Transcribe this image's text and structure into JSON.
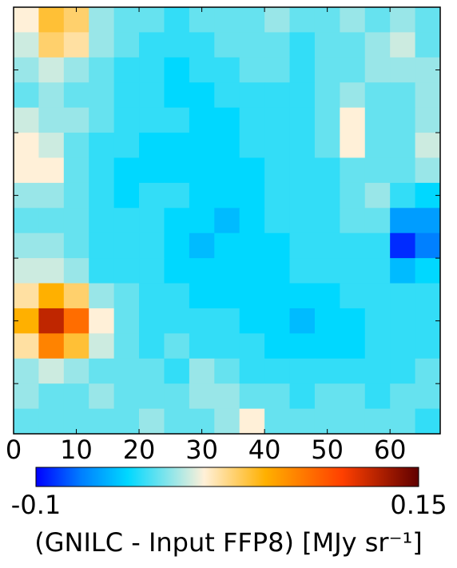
{
  "chart_data": {
    "type": "heatmap",
    "xlim": [
      0,
      68
    ],
    "ylim": [
      0,
      68
    ],
    "xticks": [
      0,
      10,
      20,
      30,
      40,
      50,
      60
    ],
    "yticks": [
      10,
      20,
      30,
      40,
      50,
      60
    ],
    "values": [
      [
        0.01,
        0.04,
        0.03,
        -0.01,
        -0.02,
        -0.02,
        -0.03,
        -0.02,
        -0.02,
        -0.02,
        -0.01,
        -0.02,
        -0.02,
        -0.01,
        -0.02,
        -0.01,
        -0.02
      ],
      [
        0.0,
        0.03,
        0.02,
        -0.01,
        -0.02,
        -0.03,
        -0.03,
        -0.03,
        -0.02,
        -0.02,
        -0.02,
        -0.03,
        -0.02,
        -0.02,
        -0.01,
        0.0,
        -0.02
      ],
      [
        -0.01,
        0.0,
        -0.01,
        -0.02,
        -0.03,
        -0.03,
        -0.04,
        -0.03,
        -0.03,
        -0.02,
        -0.02,
        -0.03,
        -0.02,
        -0.02,
        -0.01,
        -0.01,
        -0.01
      ],
      [
        -0.02,
        -0.01,
        -0.02,
        -0.02,
        -0.03,
        -0.03,
        -0.04,
        -0.04,
        -0.03,
        -0.03,
        -0.03,
        -0.03,
        -0.02,
        -0.01,
        -0.02,
        -0.02,
        -0.01
      ],
      [
        0.0,
        -0.01,
        -0.01,
        -0.02,
        -0.03,
        -0.03,
        -0.03,
        -0.04,
        -0.04,
        -0.03,
        -0.03,
        -0.03,
        -0.02,
        0.01,
        -0.02,
        -0.02,
        -0.01
      ],
      [
        0.01,
        0.0,
        -0.02,
        -0.03,
        -0.03,
        -0.04,
        -0.04,
        -0.04,
        -0.04,
        -0.03,
        -0.03,
        -0.03,
        -0.02,
        0.01,
        -0.02,
        -0.02,
        0.0
      ],
      [
        0.01,
        0.01,
        -0.02,
        -0.03,
        -0.04,
        -0.04,
        -0.04,
        -0.04,
        -0.04,
        -0.04,
        -0.03,
        -0.03,
        -0.03,
        -0.02,
        -0.02,
        -0.02,
        -0.01
      ],
      [
        -0.01,
        -0.01,
        -0.02,
        -0.03,
        -0.04,
        -0.03,
        -0.03,
        -0.04,
        -0.04,
        -0.04,
        -0.03,
        -0.03,
        -0.03,
        -0.02,
        -0.01,
        -0.03,
        -0.04
      ],
      [
        -0.02,
        -0.02,
        -0.02,
        -0.03,
        -0.03,
        -0.03,
        -0.04,
        -0.04,
        -0.05,
        -0.04,
        -0.03,
        -0.03,
        -0.03,
        -0.02,
        -0.02,
        -0.06,
        -0.06
      ],
      [
        -0.01,
        -0.01,
        -0.02,
        -0.03,
        -0.03,
        -0.03,
        -0.04,
        -0.05,
        -0.04,
        -0.04,
        -0.04,
        -0.03,
        -0.03,
        -0.03,
        -0.03,
        -0.09,
        -0.07
      ],
      [
        0.0,
        0.0,
        -0.01,
        -0.03,
        -0.03,
        -0.03,
        -0.04,
        -0.04,
        -0.04,
        -0.04,
        -0.04,
        -0.03,
        -0.03,
        -0.03,
        -0.03,
        -0.05,
        -0.04
      ],
      [
        0.02,
        0.05,
        0.03,
        -0.01,
        -0.02,
        -0.03,
        -0.03,
        -0.04,
        -0.04,
        -0.04,
        -0.04,
        -0.04,
        -0.04,
        -0.03,
        -0.03,
        -0.03,
        -0.03
      ],
      [
        0.05,
        0.12,
        0.08,
        0.01,
        -0.02,
        -0.03,
        -0.03,
        -0.03,
        -0.03,
        -0.04,
        -0.04,
        -0.05,
        -0.04,
        -0.04,
        -0.03,
        -0.03,
        -0.03
      ],
      [
        0.02,
        0.07,
        0.04,
        0.0,
        -0.02,
        -0.03,
        -0.02,
        -0.03,
        -0.03,
        -0.03,
        -0.04,
        -0.04,
        -0.04,
        -0.04,
        -0.03,
        -0.03,
        -0.03
      ],
      [
        -0.01,
        0.0,
        -0.01,
        -0.02,
        -0.02,
        -0.02,
        -0.03,
        -0.01,
        -0.02,
        -0.03,
        -0.03,
        -0.03,
        -0.03,
        -0.03,
        -0.03,
        -0.03,
        -0.02
      ],
      [
        -0.01,
        -0.02,
        -0.02,
        -0.01,
        -0.02,
        -0.02,
        -0.02,
        -0.01,
        -0.01,
        -0.02,
        -0.02,
        -0.03,
        -0.02,
        -0.02,
        -0.03,
        -0.02,
        -0.02
      ],
      [
        -0.02,
        -0.02,
        -0.02,
        -0.02,
        -0.02,
        -0.01,
        -0.02,
        -0.02,
        -0.01,
        0.01,
        -0.02,
        -0.02,
        -0.02,
        -0.02,
        -0.02,
        -0.02,
        -0.03
      ]
    ],
    "colorscale": [
      {
        "value": -0.1,
        "color": "#0000ff"
      },
      {
        "value": -0.07,
        "color": "#0080ff"
      },
      {
        "value": -0.04,
        "color": "#00d8ff"
      },
      {
        "value": 0.01,
        "color": "#fff0d8"
      },
      {
        "value": 0.05,
        "color": "#ffb000"
      },
      {
        "value": 0.1,
        "color": "#ff4000"
      },
      {
        "value": 0.15,
        "color": "#600000"
      }
    ],
    "colorbar_lim": [
      -0.1,
      0.15
    ],
    "colorbar_ticks": [
      -0.1,
      0.15
    ],
    "colorbar_label": "(GNILC - Input FFP8) [MJy sr⁻¹]"
  }
}
